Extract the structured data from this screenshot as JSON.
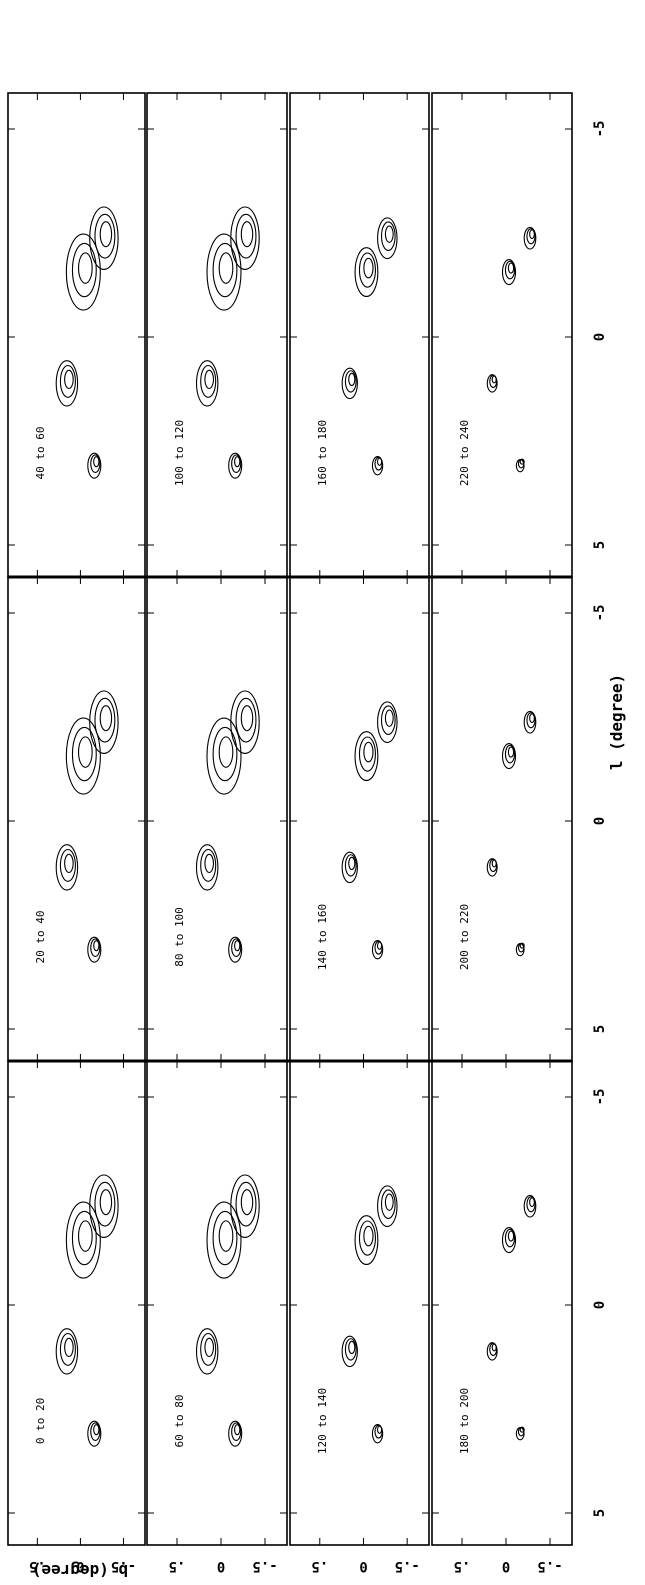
{
  "figure": {
    "xlabel": "l (degree)",
    "ylabel": "b (degree)",
    "x_ticks": [
      "5",
      "0",
      "-5"
    ],
    "y_ticks": [
      ".5",
      "0",
      "-.5"
    ],
    "panels": [
      {
        "column": 1,
        "row": 1,
        "label": "0 to 20"
      },
      {
        "column": 1,
        "row": 2,
        "label": "60 to 80"
      },
      {
        "column": 1,
        "row": 3,
        "label": "120 to 140"
      },
      {
        "column": 1,
        "row": 4,
        "label": "180 to 200"
      },
      {
        "column": 2,
        "row": 1,
        "label": "20 to 40"
      },
      {
        "column": 2,
        "row": 2,
        "label": "80 to 100"
      },
      {
        "column": 2,
        "row": 3,
        "label": "140 to 160"
      },
      {
        "column": 2,
        "row": 4,
        "label": "200 to 220"
      },
      {
        "column": 3,
        "row": 1,
        "label": "40 to 60"
      },
      {
        "column": 3,
        "row": 2,
        "label": "100 to 120"
      },
      {
        "column": 3,
        "row": 3,
        "label": "160 to 180"
      },
      {
        "column": 3,
        "row": 4,
        "label": "220 to 240"
      }
    ]
  }
}
